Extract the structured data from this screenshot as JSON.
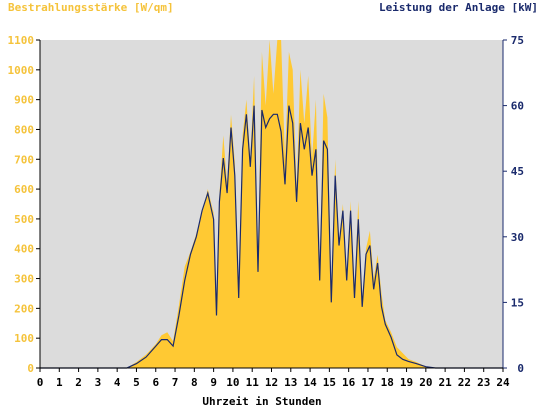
{
  "chart_data": {
    "type": "area",
    "title_left": "Bestrahlungsstärke [W/qm]",
    "title_right": "Leistung der Anlage [kW]",
    "xlabel": "Uhrzeit in Stunden",
    "xlim": [
      0,
      24
    ],
    "ylim_left": [
      0,
      1100
    ],
    "ylim_right": [
      0,
      75
    ],
    "x_ticks": [
      "0",
      "1",
      "2",
      "3",
      "4",
      "5",
      "6",
      "7",
      "8",
      "9",
      "10",
      "11",
      "12",
      "13",
      "14",
      "15",
      "16",
      "17",
      "18",
      "19",
      "20",
      "21",
      "22",
      "23",
      "24"
    ],
    "y_left_ticks": [
      "0",
      "100",
      "200",
      "300",
      "400",
      "500",
      "600",
      "700",
      "800",
      "900",
      "1000",
      "1100"
    ],
    "y_right_ticks": [
      "0",
      "15",
      "30",
      "45",
      "60",
      "75"
    ],
    "grid": false,
    "colors": {
      "plot_bg": "#dcdcdc",
      "irradiance": "#ffc933",
      "power": "#1a2a6c",
      "left_axis_text": "#f5c33b",
      "right_axis_text": "#1a2a6c"
    },
    "series": [
      {
        "name": "Bestrahlungsstärke [W/qm]",
        "axis": "left",
        "x": [
          0,
          4.5,
          5.0,
          5.5,
          6.0,
          6.3,
          6.6,
          6.9,
          7.2,
          7.5,
          7.8,
          8.1,
          8.4,
          8.7,
          9.0,
          9.15,
          9.3,
          9.5,
          9.7,
          9.9,
          10.1,
          10.3,
          10.5,
          10.7,
          10.9,
          11.1,
          11.3,
          11.5,
          11.7,
          11.9,
          12.1,
          12.3,
          12.5,
          12.7,
          12.9,
          13.1,
          13.3,
          13.5,
          13.7,
          13.9,
          14.1,
          14.3,
          14.5,
          14.7,
          14.9,
          15.1,
          15.3,
          15.5,
          15.7,
          15.9,
          16.1,
          16.3,
          16.5,
          16.7,
          16.9,
          17.1,
          17.3,
          17.5,
          17.7,
          17.9,
          18.2,
          18.5,
          18.8,
          19.1,
          19.5,
          20.0,
          20.5,
          21.0,
          24
        ],
        "values": [
          0,
          0,
          20,
          45,
          80,
          110,
          120,
          90,
          210,
          340,
          390,
          450,
          520,
          600,
          520,
          160,
          580,
          780,
          620,
          850,
          690,
          240,
          780,
          900,
          700,
          980,
          350,
          1060,
          880,
          1100,
          920,
          1100,
          1100,
          700,
          1060,
          1000,
          600,
          1000,
          820,
          980,
          700,
          900,
          320,
          920,
          840,
          240,
          700,
          420,
          550,
          300,
          560,
          260,
          560,
          220,
          400,
          460,
          300,
          380,
          250,
          160,
          120,
          70,
          50,
          30,
          20,
          5,
          0,
          0,
          0
        ]
      },
      {
        "name": "Leistung der Anlage [kW]",
        "axis": "right",
        "x": [
          0,
          4.5,
          5.0,
          5.5,
          6.0,
          6.3,
          6.6,
          6.9,
          7.2,
          7.5,
          7.8,
          8.1,
          8.4,
          8.7,
          9.0,
          9.15,
          9.3,
          9.5,
          9.7,
          9.9,
          10.1,
          10.3,
          10.5,
          10.7,
          10.9,
          11.1,
          11.3,
          11.5,
          11.7,
          11.9,
          12.1,
          12.3,
          12.5,
          12.7,
          12.9,
          13.1,
          13.3,
          13.5,
          13.7,
          13.9,
          14.1,
          14.3,
          14.5,
          14.7,
          14.9,
          15.1,
          15.3,
          15.5,
          15.7,
          15.9,
          16.1,
          16.3,
          16.5,
          16.7,
          16.9,
          17.1,
          17.3,
          17.5,
          17.7,
          17.9,
          18.2,
          18.5,
          18.8,
          19.1,
          19.5,
          20.0,
          20.5,
          21.0,
          24
        ],
        "values": [
          0,
          0,
          1,
          2.5,
          5,
          6.5,
          6.5,
          5,
          12,
          20,
          26,
          30,
          36,
          40,
          34,
          12,
          38,
          48,
          40,
          55,
          44,
          16,
          50,
          58,
          46,
          60,
          22,
          59,
          55,
          57,
          58,
          58,
          54,
          42,
          60,
          56,
          38,
          56,
          50,
          55,
          44,
          50,
          20,
          52,
          50,
          15,
          44,
          28,
          36,
          20,
          36,
          16,
          34,
          14,
          26,
          28,
          18,
          24,
          14,
          10,
          7,
          3,
          2,
          1.5,
          1,
          0.3,
          0,
          0,
          0
        ]
      }
    ]
  }
}
